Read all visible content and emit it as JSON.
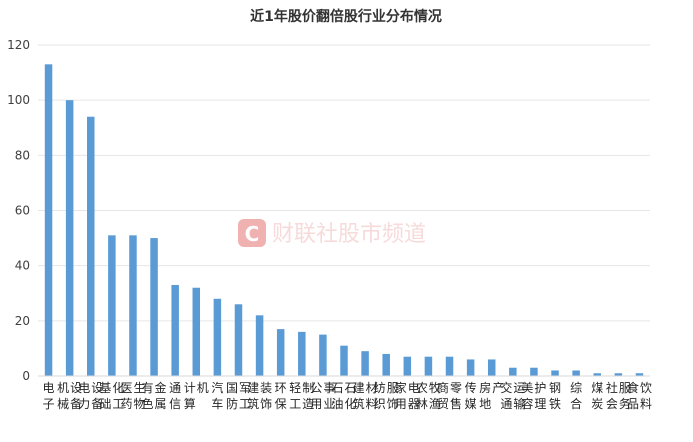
{
  "chart_data": {
    "type": "bar",
    "title": "近1年股价翻倍股行业分布情况",
    "xlabel": "",
    "ylabel": "",
    "ylim": [
      0,
      120
    ],
    "yticks": [
      0,
      20,
      40,
      60,
      80,
      100,
      120
    ],
    "grid": true,
    "legend": "none",
    "bar_color": "#5b9bd5",
    "categories": [
      "电子",
      "机械设备",
      "电力设备",
      "基础化工",
      "医药生物",
      "有色金属",
      "通信",
      "计算机",
      "汽车",
      "国防军工",
      "建筑装饰",
      "环保",
      "轻工制造",
      "公用事业",
      "石油石化",
      "建筑材料",
      "纺织服饰",
      "家用电器",
      "农林牧渔",
      "商贸零售",
      "传媒",
      "房地产",
      "交通运输",
      "美容护理",
      "钢铁",
      "综合",
      "煤炭",
      "社会服务",
      "食品饮料"
    ],
    "values": [
      113,
      100,
      94,
      51,
      51,
      50,
      33,
      32,
      28,
      26,
      22,
      17,
      16,
      15,
      11,
      9,
      8,
      7,
      7,
      7,
      6,
      6,
      3,
      3,
      2,
      2,
      1,
      1,
      1
    ]
  },
  "watermark": {
    "logo_letter": "C",
    "text": "财联社股市频道",
    "color": "#e06666"
  }
}
